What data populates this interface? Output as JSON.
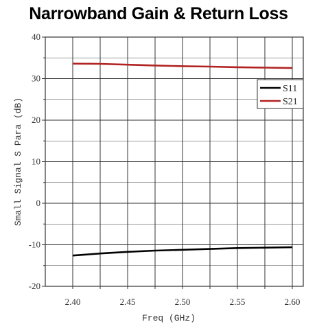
{
  "chart_data": {
    "type": "line",
    "title": "Narrowband Gain & Return Loss",
    "xlabel": "Freq (GHz)",
    "ylabel": "Small Signal S Para (dB)",
    "xlim": [
      2.375,
      2.61
    ],
    "ylim": [
      -20,
      40
    ],
    "xticks": [
      2.4,
      2.45,
      2.5,
      2.55,
      2.6
    ],
    "xtick_labels": [
      "2.40",
      "2.45",
      "2.50",
      "2.55",
      "2.60"
    ],
    "yticks": [
      -20,
      -10,
      0,
      10,
      20,
      30,
      40
    ],
    "ytick_labels": [
      "-20",
      "-10",
      "0",
      "10",
      "20",
      "30",
      "40"
    ],
    "grid": true,
    "legend": "right",
    "series": [
      {
        "name": "S11",
        "color": "#000000",
        "x": [
          2.4,
          2.425,
          2.45,
          2.475,
          2.5,
          2.525,
          2.55,
          2.575,
          2.6
        ],
        "y": [
          -12.6,
          -12.1,
          -11.7,
          -11.4,
          -11.2,
          -11.0,
          -10.8,
          -10.7,
          -10.6
        ]
      },
      {
        "name": "S21",
        "color": "#b22222",
        "x": [
          2.4,
          2.425,
          2.45,
          2.475,
          2.5,
          2.525,
          2.55,
          2.575,
          2.6
        ],
        "y": [
          33.6,
          33.55,
          33.35,
          33.15,
          33.0,
          32.9,
          32.75,
          32.65,
          32.55
        ]
      }
    ]
  }
}
